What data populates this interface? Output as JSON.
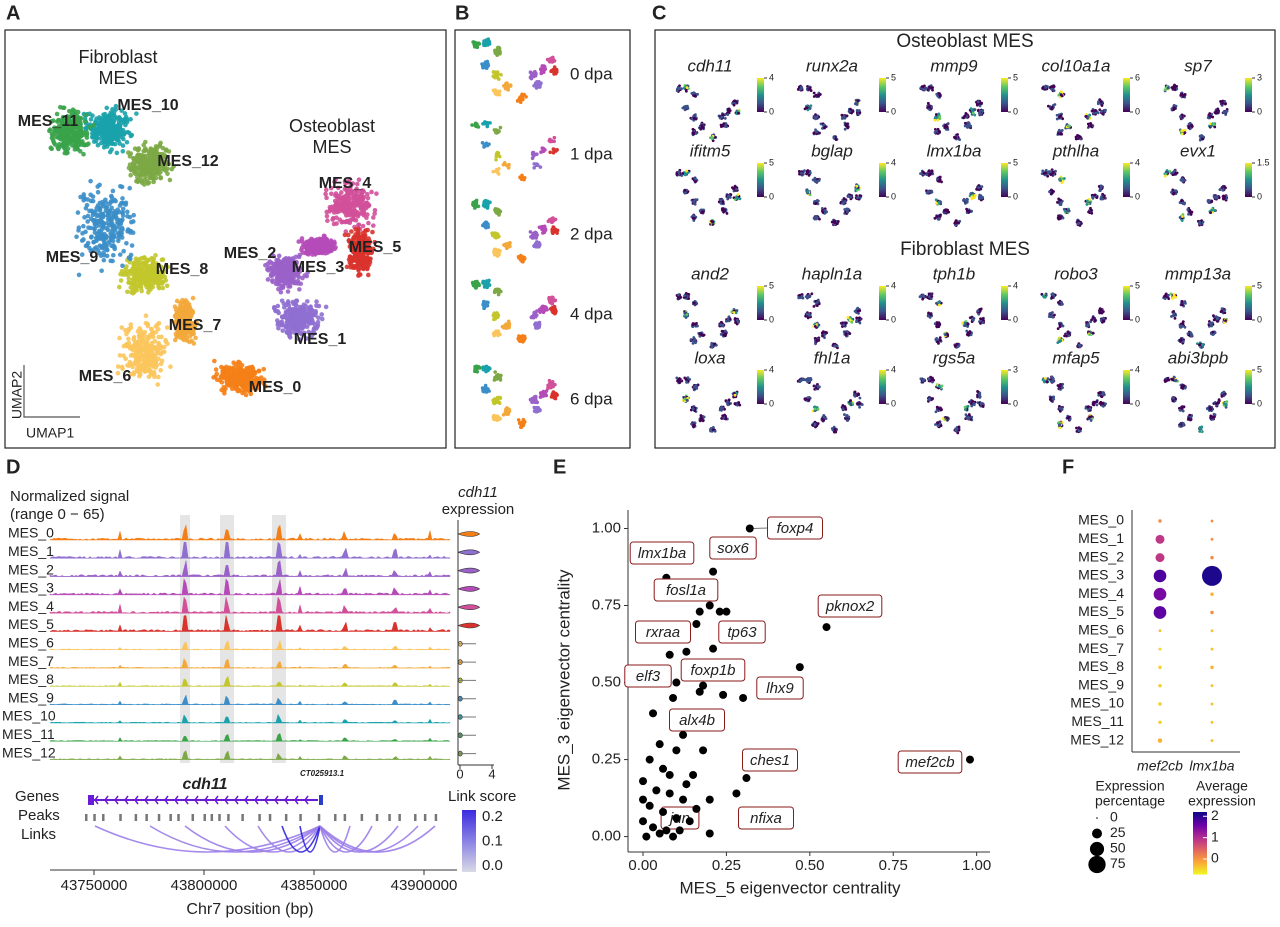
{
  "panel_a": {
    "letter": "A",
    "groups": [
      {
        "lines": [
          "Fibroblast",
          "MES"
        ]
      },
      {
        "lines": [
          "Osteoblast",
          "MES"
        ]
      }
    ],
    "x_axis": "UMAP1",
    "y_axis": "UMAP2",
    "clusters": [
      {
        "name": "MES_0",
        "color": "#f57f17"
      },
      {
        "name": "MES_1",
        "color": "#8f6fd0"
      },
      {
        "name": "MES_2",
        "color": "#9a62c9"
      },
      {
        "name": "MES_3",
        "color": "#b54bb8"
      },
      {
        "name": "MES_4",
        "color": "#d2509a"
      },
      {
        "name": "MES_5",
        "color": "#d8332c"
      },
      {
        "name": "MES_6",
        "color": "#fbc55c"
      },
      {
        "name": "MES_7",
        "color": "#f3a83b"
      },
      {
        "name": "MES_8",
        "color": "#c2c62b"
      },
      {
        "name": "MES_9",
        "color": "#3b8ec8"
      },
      {
        "name": "MES_10",
        "color": "#19a2ab"
      },
      {
        "name": "MES_11",
        "color": "#3aa34a"
      },
      {
        "name": "MES_12",
        "color": "#7ca845"
      }
    ]
  },
  "panel_b": {
    "letter": "B",
    "timepoints": [
      "0 dpa",
      "1 dpa",
      "2 dpa",
      "4 dpa",
      "6 dpa"
    ]
  },
  "panel_c": {
    "letter": "C",
    "groups": [
      {
        "title": "Osteoblast MES",
        "genes": [
          {
            "name": "cdh11",
            "scale_ticks": [
              0,
              4
            ]
          },
          {
            "name": "runx2a",
            "scale_ticks": [
              0,
              5
            ]
          },
          {
            "name": "mmp9",
            "scale_ticks": [
              0,
              5
            ]
          },
          {
            "name": "col10a1a",
            "scale_ticks": [
              0,
              6
            ]
          },
          {
            "name": "sp7",
            "scale_ticks": [
              0,
              3
            ]
          },
          {
            "name": "ifitm5",
            "scale_ticks": [
              0,
              5
            ]
          },
          {
            "name": "bglap",
            "scale_ticks": [
              0,
              4
            ]
          },
          {
            "name": "lmx1ba",
            "scale_ticks": [
              0,
              5
            ]
          },
          {
            "name": "pthlha",
            "scale_ticks": [
              0,
              4
            ]
          },
          {
            "name": "evx1",
            "scale_ticks": [
              0,
              1.5
            ]
          }
        ]
      },
      {
        "title": "Fibroblast MES",
        "genes": [
          {
            "name": "and2",
            "scale_ticks": [
              0,
              5
            ]
          },
          {
            "name": "hapln1a",
            "scale_ticks": [
              0,
              4
            ]
          },
          {
            "name": "tph1b",
            "scale_ticks": [
              0,
              4
            ]
          },
          {
            "name": "robo3",
            "scale_ticks": [
              0,
              5
            ]
          },
          {
            "name": "mmp13a",
            "scale_ticks": [
              0,
              5
            ]
          },
          {
            "name": "loxa",
            "scale_ticks": [
              0,
              4
            ]
          },
          {
            "name": "fhl1a",
            "scale_ticks": [
              0,
              4
            ]
          },
          {
            "name": "rgs5a",
            "scale_ticks": [
              0,
              3
            ]
          },
          {
            "name": "mfap5",
            "scale_ticks": [
              0,
              4
            ]
          },
          {
            "name": "abi3bpb",
            "scale_ticks": [
              0,
              5
            ]
          }
        ]
      }
    ]
  },
  "panel_d": {
    "letter": "D",
    "title_lines": [
      "Normalized signal",
      "(range 0 − 65)"
    ],
    "expression_title": [
      "cdh11",
      "expression"
    ],
    "tracks": [
      "MES_0",
      "MES_1",
      "MES_2",
      "MES_3",
      "MES_4",
      "MES_5",
      "MES_6",
      "MES_7",
      "MES_8",
      "MES_9",
      "MES_10",
      "MES_11",
      "MES_12"
    ],
    "violin_xlim": [
      0,
      4
    ],
    "violin_xticks": [
      0,
      4
    ],
    "rows": [
      "Genes",
      "Peaks",
      "Links"
    ],
    "gene_labels": [
      "cdh11",
      "CT025913.1"
    ],
    "link_score_title": "Link score",
    "link_lim": [
      0,
      0.2
    ],
    "link_ticks": [
      {
        "value": 0,
        "label": "0.0"
      },
      0.1,
      0.2
    ],
    "xlabel": "Chr7 position (bp)",
    "xlim": [
      43730000,
      43915000
    ],
    "xticks": [
      43750000,
      43800000,
      43850000,
      43900000
    ]
  },
  "panel_e": {
    "letter": "E",
    "type": "scatter",
    "xlabel": "MES_5 eigenvector centrality",
    "ylabel": "MES_3 eigenvector centrality",
    "xlim": [
      -0.045,
      1.04
    ],
    "ylim": [
      -0.05,
      1.06
    ],
    "xticks": [
      {
        "value": 0,
        "label": "0.00"
      },
      {
        "value": 0.25,
        "label": "0.25"
      },
      {
        "value": 0.5,
        "label": "0.50"
      },
      {
        "value": 0.75,
        "label": "0.75"
      },
      {
        "value": 1,
        "label": "1.00"
      }
    ],
    "yticks": [
      {
        "value": 0,
        "label": "0.00"
      },
      {
        "value": 0.25,
        "label": "0.25"
      },
      {
        "value": 0.5,
        "label": "0.50"
      },
      {
        "value": 0.75,
        "label": "0.75"
      },
      {
        "value": 1,
        "label": "1.00"
      }
    ],
    "color": "#000000",
    "label_color": "#8b1a1a",
    "labels": [
      "foxp4",
      "sox6",
      "lmx1ba",
      "fosl1a",
      "pknox2",
      "tp63",
      "rxraa",
      "elf3",
      "foxp1b",
      "lhx9",
      "alx4b",
      "ches1",
      "nfixa",
      "jun",
      "mef2cb",
      null,
      null,
      null,
      null,
      null,
      null,
      null,
      null,
      null,
      null,
      null,
      null,
      null,
      null,
      null,
      null,
      null,
      null,
      null,
      null,
      null,
      null,
      null,
      null,
      null,
      null,
      null,
      null,
      null,
      null,
      null,
      null,
      null,
      null,
      null,
      null
    ],
    "x": [
      0.32,
      0.21,
      0.07,
      0.2,
      0.55,
      0.23,
      0.16,
      0.08,
      0.21,
      0.47,
      0.18,
      0.31,
      0.28,
      0.2,
      0.98,
      0.17,
      0.25,
      0.13,
      0.1,
      0.24,
      0.3,
      0.17,
      0.09,
      0.12,
      0.05,
      0.1,
      0.02,
      0.06,
      0.15,
      0.0,
      0.04,
      0.08,
      0.12,
      0.02,
      0.06,
      0.1,
      0.14,
      0.0,
      0.03,
      0.07,
      0.11,
      0.01,
      0.05,
      0.09,
      0.16,
      0.2,
      0.18,
      0.03,
      0.0,
      0.13,
      0.08
    ],
    "y": [
      1.0,
      0.86,
      0.84,
      0.75,
      0.68,
      0.73,
      0.69,
      0.59,
      0.61,
      0.55,
      0.49,
      0.19,
      0.14,
      0.01,
      0.25,
      0.73,
      0.73,
      0.6,
      0.5,
      0.46,
      0.45,
      0.47,
      0.45,
      0.33,
      0.3,
      0.28,
      0.25,
      0.22,
      0.2,
      0.18,
      0.15,
      0.14,
      0.12,
      0.1,
      0.08,
      0.06,
      0.05,
      0.05,
      0.03,
      0.02,
      0.02,
      0.0,
      0.01,
      0.0,
      0.09,
      0.12,
      0.28,
      0.4,
      0.12,
      0.17,
      0.2
    ]
  },
  "panel_f": {
    "letter": "F",
    "rows": [
      "MES_0",
      "MES_1",
      "MES_2",
      "MES_3",
      "MES_4",
      "MES_5",
      "MES_6",
      "MES_7",
      "MES_8",
      "MES_9",
      "MES_10",
      "MES_11",
      "MES_12"
    ],
    "columns": [
      {
        "name": "mef2cb",
        "percentage": [
          3,
          20,
          20,
          40,
          40,
          40,
          2,
          2,
          3,
          3,
          3,
          3,
          5
        ],
        "average": [
          0.1,
          0.9,
          0.9,
          1.8,
          1.5,
          1.7,
          -0.3,
          -0.4,
          -0.4,
          -0.4,
          -0.4,
          -0.4,
          -0.2
        ]
      },
      {
        "name": "lmx1ba",
        "percentage": [
          2,
          2,
          3,
          100,
          3,
          3,
          2,
          2,
          3,
          2,
          2,
          2,
          2
        ],
        "average": [
          0.1,
          0.1,
          0.1,
          2.1,
          -0.2,
          0.1,
          -0.3,
          -0.3,
          -0.2,
          -0.3,
          -0.3,
          -0.3,
          -0.3
        ]
      }
    ],
    "size_title": [
      "Expression",
      "percentage"
    ],
    "size_ticks": [
      0,
      25,
      50,
      75
    ],
    "color_title": [
      "Average",
      "expression"
    ],
    "clim": [
      -0.7,
      2.2
    ],
    "color_ticks": [
      0,
      1,
      2
    ],
    "palette": [
      "#f0f921",
      "#fca636",
      "#e16462",
      "#b12a90",
      "#6a00a8",
      "#0d0887"
    ]
  }
}
